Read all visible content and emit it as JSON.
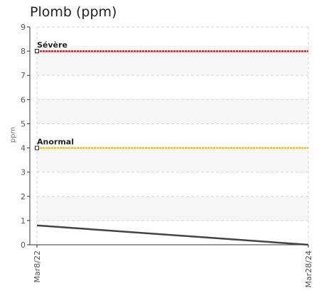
{
  "chart_data": {
    "type": "line",
    "title": "Plomb (ppm)",
    "ylabel": "ppm",
    "xlabel": "",
    "ylim": [
      0,
      9
    ],
    "yticks": [
      0,
      1,
      2,
      3,
      4,
      5,
      6,
      7,
      8,
      9
    ],
    "categories": [
      "Mar8/22",
      "Mar28/24"
    ],
    "grid": true,
    "series": [
      {
        "values": [
          0.8,
          0
        ],
        "color": "#444444"
      }
    ],
    "thresholds": [
      {
        "label": "Sévère",
        "value": 8,
        "color": "#e8161c"
      },
      {
        "label": "Anormal",
        "value": 4,
        "color": "#f0c419"
      }
    ]
  }
}
